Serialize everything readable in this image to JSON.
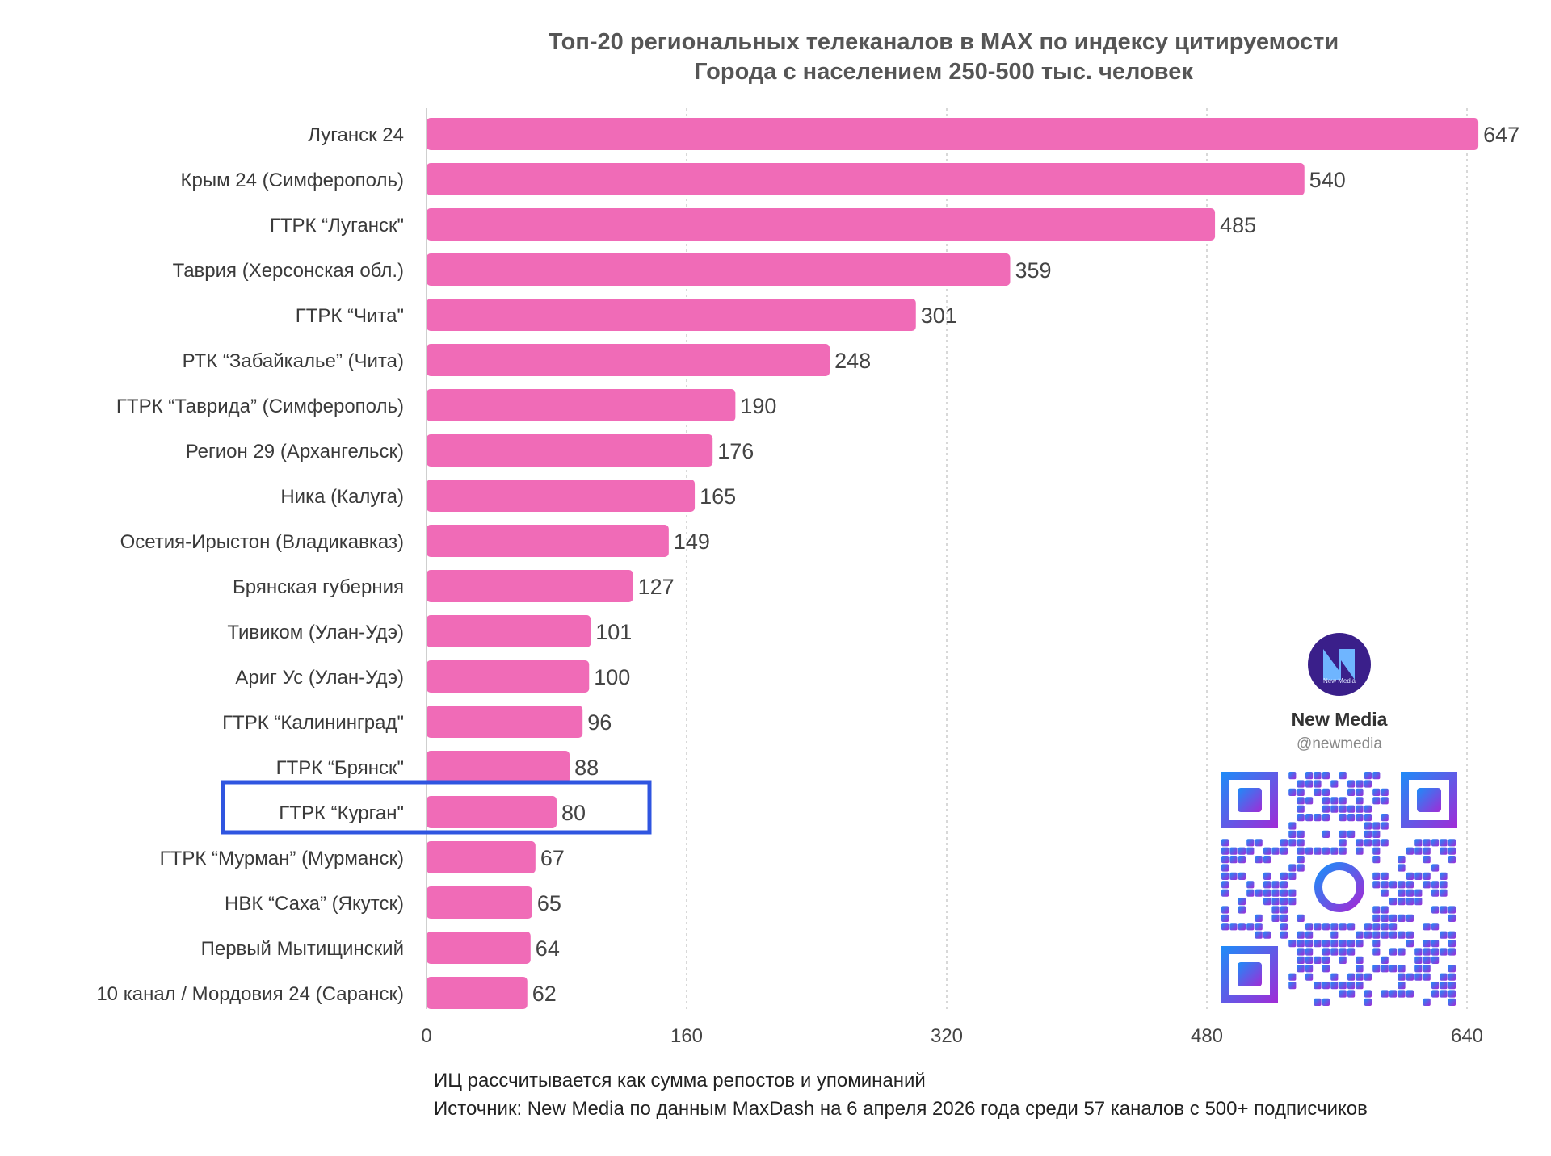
{
  "chart_data": {
    "type": "bar",
    "orientation": "horizontal",
    "title": "Топ-20 региональных телеканалов в MAX по индексу цитируемости",
    "subtitle": "Города с населением 250-500 тыс. человек",
    "categories": [
      "Луганск 24",
      "Крым 24 (Симферополь)",
      "ГТРК “Луганск\"",
      "Таврия (Херсонская обл.)",
      "ГТРК “Чита\"",
      "РТК “Забайкалье” (Чита)",
      "ГТРК “Таврида” (Симферополь)",
      "Регион 29 (Архангельск)",
      "Ника (Калуга)",
      "Осетия-Ирыстон (Владикавказ)",
      "Брянская губерния",
      "Тивиком (Улан-Удэ)",
      "Ариг Ус (Улан-Удэ)",
      "ГТРК “Калининград\"",
      "ГТРК “Брянск\"",
      "ГТРК “Курган\"",
      "ГТРК “Мурман” (Мурманск)",
      "НВК “Саха” (Якутск)",
      "Первый Мытищинский",
      "10 канал / Мордовия 24 (Саранск)"
    ],
    "values": [
      647,
      540,
      485,
      359,
      301,
      248,
      190,
      176,
      165,
      149,
      127,
      101,
      100,
      96,
      88,
      80,
      67,
      65,
      64,
      62
    ],
    "xlim": [
      0,
      640
    ],
    "xticks": [
      0,
      160,
      320,
      480,
      640
    ],
    "grid": "vertical dotted",
    "bar_color": "#f06bb7",
    "highlight_category": "ГТРК “Курган\"",
    "highlight_color": "#2f55e0"
  },
  "footnotes": [
    "ИЦ рассчитывается как сумма репостов и упоминаний",
    "Источник: New Media по данным MaxDash на 6 апреля 2026 года среди 57 каналов с 500+ подписчиков"
  ],
  "brand": {
    "logo_text": "New Media",
    "name": "New Media",
    "handle": "@newmedia",
    "logo_color": "#3a1f8a",
    "qr_gradient": [
      "#1d8cf8",
      "#a12bd6"
    ]
  }
}
